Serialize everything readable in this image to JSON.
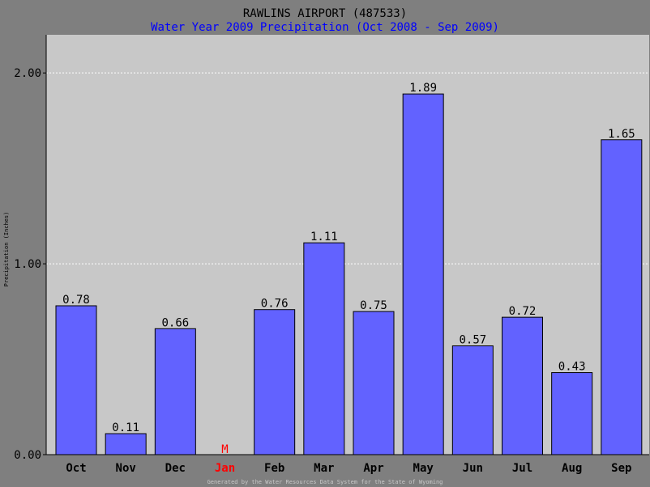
{
  "chart_data": {
    "type": "bar",
    "title": "RAWLINS AIRPORT (487533)",
    "subtitle": "Water Year 2009 Precipitation (Oct 2008 - Sep 2009)",
    "ylabel": "Precipitation (Inches)",
    "footer": "Generated by the Water Resources Data System for the State of Wyoming",
    "ylim": [
      0,
      2.2
    ],
    "yticks": [
      {
        "value": 0,
        "label": "0.00"
      },
      {
        "value": 1,
        "label": "1.00"
      },
      {
        "value": 2,
        "label": "2.00"
      }
    ],
    "grid": true,
    "categories": [
      "Oct",
      "Nov",
      "Dec",
      "Jan",
      "Feb",
      "Mar",
      "Apr",
      "May",
      "Jun",
      "Jul",
      "Aug",
      "Sep"
    ],
    "values": [
      0.78,
      0.11,
      0.66,
      null,
      0.76,
      1.11,
      0.75,
      1.89,
      0.57,
      0.72,
      0.43,
      1.65
    ],
    "value_labels": [
      "0.78",
      "0.11",
      "0.66",
      "M",
      "0.76",
      "1.11",
      "0.75",
      "1.89",
      "0.57",
      "0.72",
      "0.43",
      "1.65"
    ],
    "missing_marker": "M",
    "colors": {
      "bar": "#6262ff",
      "plot_background": "#c8c8c8",
      "outer_background": "#7f7f7f",
      "title": "#000000",
      "subtitle": "#0000ff",
      "missing": "#ff0000",
      "grid": "#ffffff",
      "footer": "#c8c8c8"
    }
  }
}
